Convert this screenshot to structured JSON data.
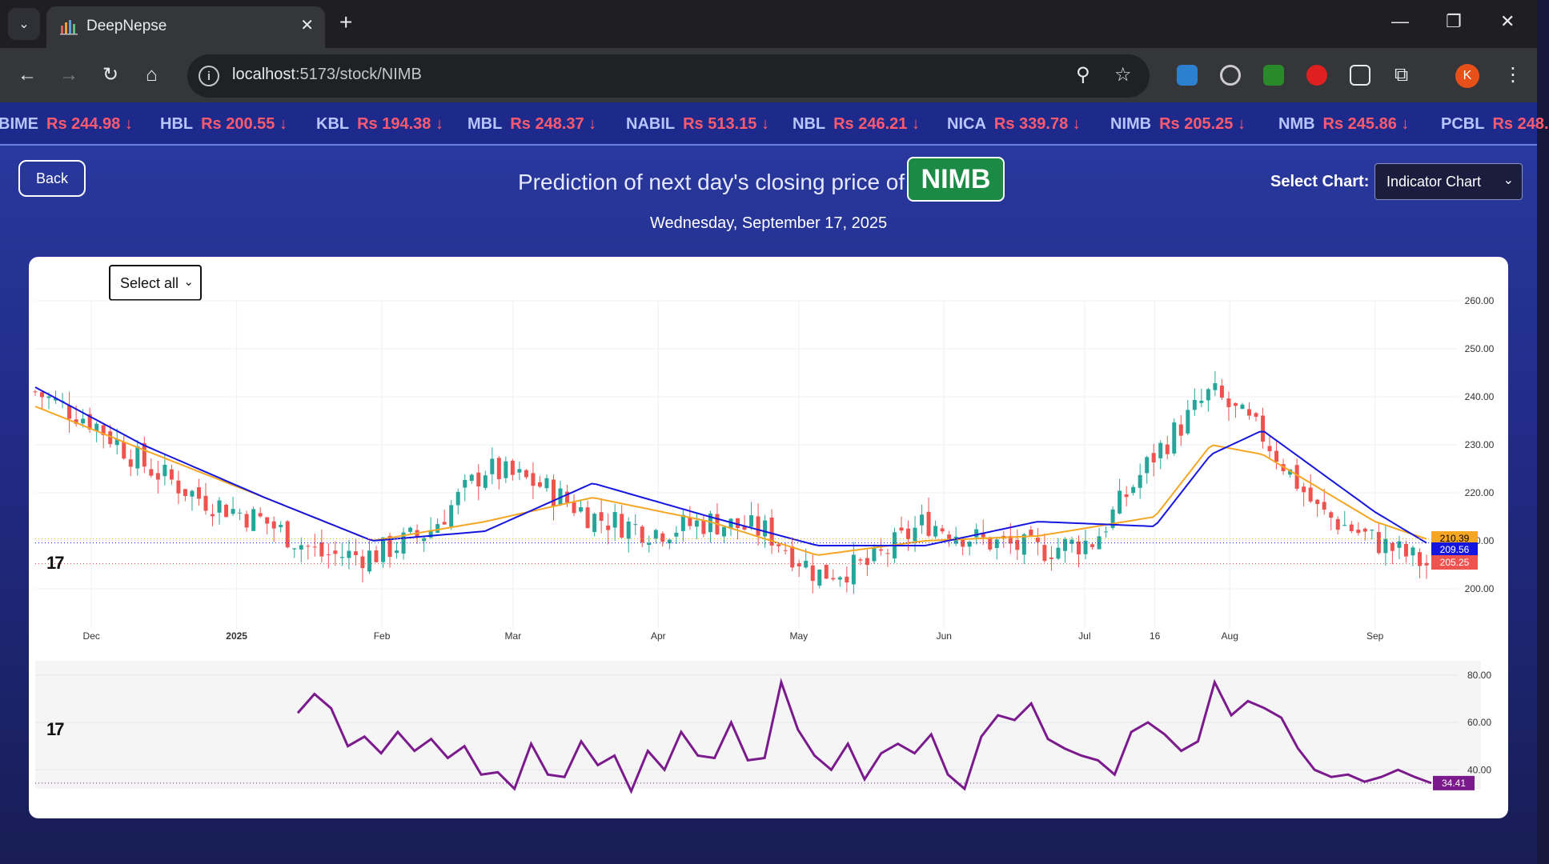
{
  "browser": {
    "tab_title": "DeepNepse",
    "new_tab": "+",
    "url_host": "localhost",
    "url_path": ":5173/stock/NIMB",
    "profile_initial": "K"
  },
  "ticker": [
    {
      "symbol": "BIME",
      "price": "Rs 244.98 ↓"
    },
    {
      "symbol": "HBL",
      "price": "Rs 200.55 ↓"
    },
    {
      "symbol": "KBL",
      "price": "Rs 194.38 ↓"
    },
    {
      "symbol": "MBL",
      "price": "Rs 248.37 ↓"
    },
    {
      "symbol": "NABIL",
      "price": "Rs 513.15 ↓"
    },
    {
      "symbol": "NBL",
      "price": "Rs 246.21 ↓"
    },
    {
      "symbol": "NICA",
      "price": "Rs 339.78 ↓"
    },
    {
      "symbol": "NIMB",
      "price": "Rs 205.25 ↓"
    },
    {
      "symbol": "NMB",
      "price": "Rs 245.86 ↓"
    },
    {
      "symbol": "PCBL",
      "price": "Rs 248."
    }
  ],
  "header": {
    "back_label": "Back",
    "headline": "Prediction of next day's closing price of",
    "symbol": "NIMB",
    "date": "Wednesday, September 17, 2025",
    "select_chart_label": "Select Chart:",
    "select_chart_value": "Indicator Chart"
  },
  "chart_controls": {
    "select_all": "Select all"
  },
  "colors": {
    "up": "#26a69a",
    "down": "#ef5350",
    "ma_fast": "#f5a623",
    "ma_slow": "#1515e0",
    "rsi": "#7b1a8c",
    "badge": "#1a8a45"
  },
  "chart_data": [
    {
      "type": "candlestick",
      "title": "",
      "x_ticks": [
        "Dec",
        "2025",
        "Feb",
        "Mar",
        "Apr",
        "May",
        "Jun",
        "Jul",
        "16",
        "Aug",
        "Sep"
      ],
      "y_ticks": [
        "200.00",
        "210.00",
        "220.00",
        "230.00",
        "240.00",
        "250.00",
        "260.00"
      ],
      "ylim": [
        195,
        260
      ],
      "price_labels": {
        "ma_fast": "210.39",
        "ma_slow": "209.56",
        "last_close": "205.25"
      },
      "close_path": [
        [
          "Nov 19",
          241
        ],
        [
          "Dec 1",
          235
        ],
        [
          "Dec 12",
          226
        ],
        [
          "Dec 24",
          219
        ],
        [
          "Jan 7",
          214
        ],
        [
          "Jan 19",
          207
        ],
        [
          "Jan 30",
          207
        ],
        [
          "Feb 11",
          212
        ],
        [
          "Feb 23",
          225
        ],
        [
          "Mar 6",
          222
        ],
        [
          "Mar 18",
          215
        ],
        [
          "Mar 31",
          212
        ],
        [
          "Apr 12",
          214
        ],
        [
          "Apr 24",
          212
        ],
        [
          "May 5",
          203
        ],
        [
          "May 16",
          205
        ],
        [
          "May 28",
          214
        ],
        [
          "Jun 9",
          210
        ],
        [
          "Jun 21",
          208
        ],
        [
          "Jul 3",
          210
        ],
        [
          "Jul 16",
          228
        ],
        [
          "Jul 28",
          241
        ],
        [
          "Aug 8",
          232
        ],
        [
          "Aug 20",
          216
        ],
        [
          "Sep 1",
          210
        ],
        [
          "Sep 12",
          205
        ]
      ],
      "ma_fast_path": [
        [
          "Nov 19",
          238
        ],
        [
          "Dec 12",
          229
        ],
        [
          "Jan 7",
          219
        ],
        [
          "Jan 30",
          210
        ],
        [
          "Feb 23",
          214
        ],
        [
          "Mar 18",
          219
        ],
        [
          "Apr 12",
          214
        ],
        [
          "May 5",
          207
        ],
        [
          "May 28",
          210
        ],
        [
          "Jun 21",
          211
        ],
        [
          "Jul 16",
          215
        ],
        [
          "Jul 28",
          230
        ],
        [
          "Aug 8",
          228
        ],
        [
          "Sep 1",
          214
        ],
        [
          "Sep 12",
          210.39
        ]
      ],
      "ma_slow_path": [
        [
          "Nov 19",
          242
        ],
        [
          "Dec 12",
          230
        ],
        [
          "Jan 7",
          219
        ],
        [
          "Jan 30",
          210
        ],
        [
          "Feb 23",
          212
        ],
        [
          "Mar 18",
          222
        ],
        [
          "Apr 12",
          215
        ],
        [
          "May 5",
          209
        ],
        [
          "May 28",
          209
        ],
        [
          "Jun 21",
          214
        ],
        [
          "Jul 16",
          213
        ],
        [
          "Jul 28",
          228
        ],
        [
          "Aug 8",
          233
        ],
        [
          "Sep 1",
          216
        ],
        [
          "Sep 12",
          209.56
        ]
      ]
    },
    {
      "type": "line",
      "title": "",
      "y_ticks": [
        "40.00",
        "60.00",
        "80.00"
      ],
      "ylim": [
        32,
        86
      ],
      "last_value": "34.41",
      "series": [
        {
          "values": [
            [
              64,
              72,
              66,
              50,
              54,
              47,
              56,
              48,
              53,
              45,
              50,
              38,
              39,
              32,
              51,
              38,
              37,
              52,
              42,
              46,
              31,
              48,
              40,
              56,
              46,
              45,
              60,
              44,
              45,
              77,
              57,
              46,
              40,
              51,
              36,
              47,
              51,
              47,
              55,
              38,
              32,
              54,
              63,
              61,
              68,
              53,
              49,
              46,
              44,
              38,
              56,
              60,
              55,
              48,
              52,
              77,
              63,
              69,
              66,
              62,
              49,
              40,
              37,
              38,
              35,
              37,
              40,
              37,
              34.41
            ]
          ]
        }
      ]
    }
  ]
}
